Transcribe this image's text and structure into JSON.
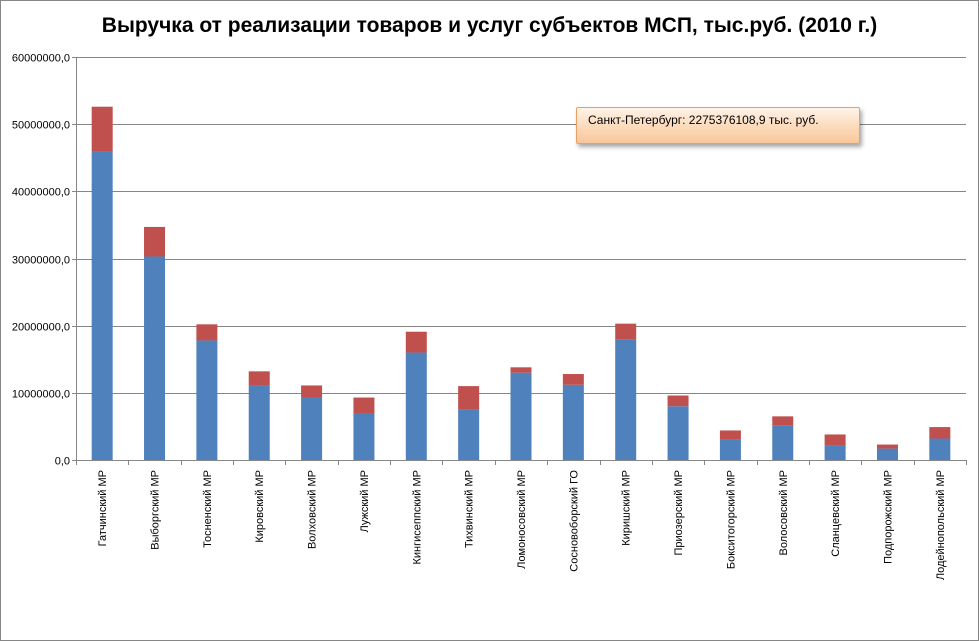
{
  "chart_data": {
    "type": "bar",
    "stacked": true,
    "title": "Выручка от реализации товаров и услуг субъектов МСП, тыс.руб. (2010 г.)",
    "categories": [
      "Гатчинский МР",
      "Выборгский МР",
      "Тосненский МР",
      "Кировский МР",
      "Волховский МР",
      "Лужский МР",
      "Кингисеппский МР",
      "Тихвинский МР",
      "Ломоносовский МР",
      "Сосновоборский ГО",
      "Киришский МР",
      "Приозерский МР",
      "Бокситогорский МР",
      "Волосовский МР",
      "Сланцевский МР",
      "Подпорожский МР",
      "Лодейнопольский МР"
    ],
    "series": [
      {
        "color": "#4f81bd",
        "values": [
          46000000,
          30300000,
          17800000,
          11100000,
          9300000,
          7000000,
          16000000,
          7500000,
          13000000,
          11200000,
          18000000,
          8000000,
          3000000,
          5100000,
          2100000,
          1700000,
          3200000
        ]
      },
      {
        "color": "#c0504d",
        "values": [
          6600000,
          4400000,
          2400000,
          2100000,
          1800000,
          2300000,
          3100000,
          3500000,
          800000,
          1600000,
          2300000,
          1600000,
          1400000,
          1400000,
          1700000,
          600000,
          1700000
        ]
      }
    ],
    "ylim": [
      0,
      60000000
    ],
    "yticks": [
      0,
      10000000,
      20000000,
      30000000,
      40000000,
      50000000,
      60000000
    ],
    "ytick_labels": [
      "0,0",
      "10000000,0",
      "20000000,0",
      "30000000,0",
      "40000000,0",
      "50000000,0",
      "60000000,0"
    ],
    "grid": true,
    "annotation": "Санкт-Петербург: 2275376108,9  тыс. руб."
  }
}
